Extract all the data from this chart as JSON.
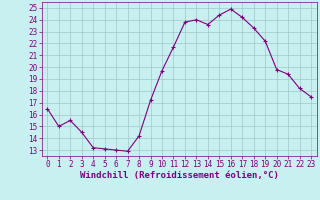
{
  "x": [
    0,
    1,
    2,
    3,
    4,
    5,
    6,
    7,
    8,
    9,
    10,
    11,
    12,
    13,
    14,
    15,
    16,
    17,
    18,
    19,
    20,
    21,
    22,
    23
  ],
  "y": [
    16.5,
    15.0,
    15.5,
    14.5,
    13.2,
    13.1,
    13.0,
    12.9,
    14.2,
    17.2,
    19.7,
    21.7,
    23.8,
    24.0,
    23.6,
    24.4,
    24.9,
    24.2,
    23.3,
    22.2,
    19.8,
    19.4,
    18.2,
    17.5
  ],
  "line_color": "#800080",
  "marker": "+",
  "bg_color": "#c8f0f0",
  "grid_color": "#a0c8c8",
  "xlabel": "Windchill (Refroidissement éolien,°C)",
  "ylim": [
    12.5,
    25.5
  ],
  "xlim": [
    -0.5,
    23.5
  ],
  "yticks": [
    13,
    14,
    15,
    16,
    17,
    18,
    19,
    20,
    21,
    22,
    23,
    24,
    25
  ],
  "xticks": [
    0,
    1,
    2,
    3,
    4,
    5,
    6,
    7,
    8,
    9,
    10,
    11,
    12,
    13,
    14,
    15,
    16,
    17,
    18,
    19,
    20,
    21,
    22,
    23
  ],
  "tick_color": "#800080",
  "label_fontsize": 6.5,
  "tick_fontsize": 5.5
}
